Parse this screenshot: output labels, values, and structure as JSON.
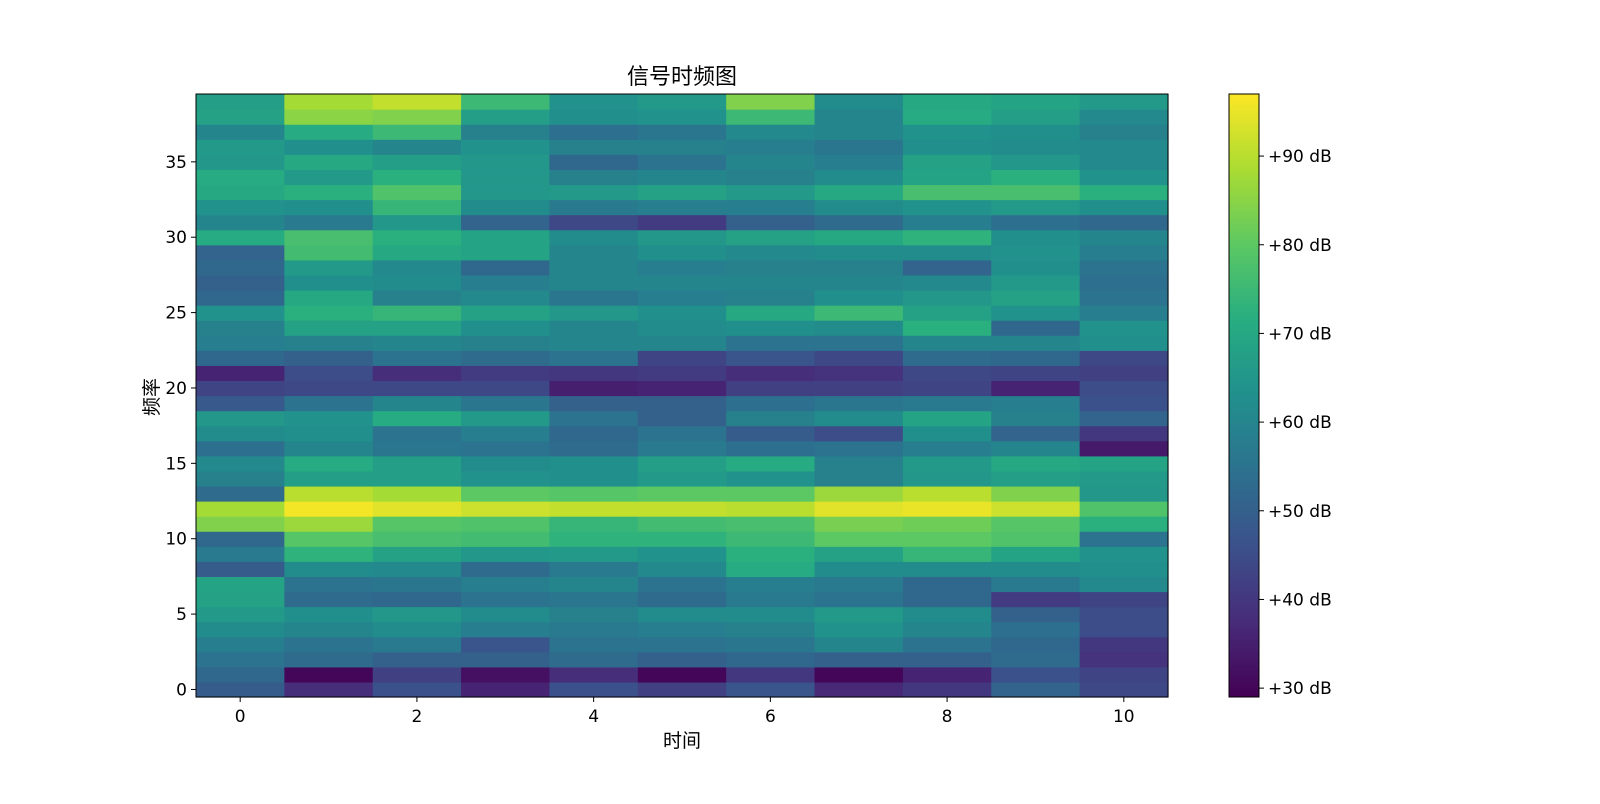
{
  "chart_data": {
    "type": "heatmap",
    "title": "信号时频图",
    "xlabel": "时间",
    "ylabel": "频率",
    "x_ticks": [
      0,
      2,
      4,
      6,
      8,
      10
    ],
    "y_ticks": [
      0,
      5,
      10,
      15,
      20,
      25,
      30,
      35
    ],
    "x_range": [
      -0.5,
      10.5
    ],
    "y_range": [
      -0.5,
      39.5
    ],
    "colormap": "viridis",
    "color_range": [
      29,
      97
    ],
    "colorbar_ticks": [
      {
        "value": 30,
        "label": "+30 dB"
      },
      {
        "value": 40,
        "label": "+40 dB"
      },
      {
        "value": 50,
        "label": "+50 dB"
      },
      {
        "value": 60,
        "label": "+60 dB"
      },
      {
        "value": 70,
        "label": "+70 dB"
      },
      {
        "value": 80,
        "label": "+80 dB"
      },
      {
        "value": 90,
        "label": "+90 dB"
      }
    ],
    "rows_note": "values[f][t]: f = frequency index 0..39 (bottom to top), t = time index 0..10",
    "values": [
      [
        49,
        38,
        46,
        36,
        46,
        42,
        47,
        37,
        40,
        51,
        44
      ],
      [
        52,
        30,
        42,
        32,
        38,
        30,
        40,
        30,
        36,
        46,
        43
      ],
      [
        55,
        53,
        50,
        50,
        53,
        50,
        52,
        50,
        50,
        53,
        39
      ],
      [
        58,
        55,
        57,
        47,
        55,
        55,
        56,
        60,
        55,
        52,
        40
      ],
      [
        62,
        60,
        62,
        58,
        57,
        58,
        59,
        64,
        60,
        54,
        45
      ],
      [
        66,
        63,
        65,
        62,
        59,
        62,
        62,
        66,
        62,
        50,
        45
      ],
      [
        68,
        53,
        52,
        55,
        56,
        53,
        57,
        55,
        52,
        41,
        43
      ],
      [
        69,
        55,
        56,
        58,
        60,
        55,
        58,
        57,
        52,
        57,
        61
      ],
      [
        49,
        62,
        61,
        53,
        57,
        61,
        71,
        62,
        62,
        62,
        63
      ],
      [
        57,
        73,
        68,
        65,
        66,
        64,
        72,
        68,
        74,
        69,
        64
      ],
      [
        52,
        79,
        77,
        76,
        73,
        73,
        75,
        80,
        80,
        78,
        55
      ],
      [
        84,
        87,
        79,
        78,
        74,
        76,
        77,
        83,
        82,
        79,
        72
      ],
      [
        88,
        96,
        94,
        92,
        91,
        91,
        90,
        94,
        95,
        92,
        78
      ],
      [
        53,
        90,
        88,
        80,
        79,
        80,
        80,
        87,
        90,
        84,
        65
      ],
      [
        59,
        67,
        67,
        64,
        63,
        66,
        64,
        59,
        65,
        67,
        66
      ],
      [
        61,
        71,
        67,
        62,
        63,
        67,
        71,
        59,
        66,
        70,
        69
      ],
      [
        54,
        60,
        56,
        55,
        53,
        57,
        54,
        55,
        58,
        60,
        34
      ],
      [
        62,
        63,
        55,
        58,
        52,
        55,
        49,
        45,
        63,
        51,
        40
      ],
      [
        65,
        64,
        71,
        66,
        55,
        50,
        59,
        62,
        69,
        59,
        51
      ],
      [
        48,
        55,
        60,
        56,
        50,
        50,
        54,
        56,
        57,
        58,
        46
      ],
      [
        43,
        44,
        44,
        44,
        35,
        36,
        42,
        42,
        43,
        36,
        45
      ],
      [
        36,
        45,
        38,
        41,
        40,
        41,
        38,
        39,
        44,
        43,
        42
      ],
      [
        52,
        50,
        55,
        53,
        55,
        43,
        47,
        44,
        53,
        52,
        44
      ],
      [
        58,
        59,
        60,
        59,
        60,
        60,
        55,
        55,
        60,
        60,
        63
      ],
      [
        59,
        68,
        68,
        63,
        60,
        62,
        63,
        62,
        72,
        52,
        64
      ],
      [
        64,
        72,
        74,
        68,
        65,
        63,
        70,
        75,
        68,
        64,
        58
      ],
      [
        52,
        70,
        59,
        61,
        56,
        58,
        59,
        63,
        65,
        68,
        55
      ],
      [
        50,
        63,
        62,
        58,
        60,
        60,
        60,
        60,
        61,
        66,
        54
      ],
      [
        52,
        66,
        61,
        52,
        60,
        58,
        59,
        59,
        51,
        63,
        55
      ],
      [
        51,
        76,
        70,
        69,
        60,
        63,
        61,
        62,
        62,
        64,
        58
      ],
      [
        71,
        77,
        72,
        69,
        62,
        65,
        68,
        70,
        73,
        63,
        60
      ],
      [
        60,
        57,
        65,
        51,
        44,
        41,
        50,
        53,
        58,
        54,
        52
      ],
      [
        64,
        63,
        74,
        62,
        57,
        58,
        58,
        62,
        64,
        66,
        63
      ],
      [
        70,
        72,
        78,
        65,
        66,
        68,
        66,
        70,
        77,
        77,
        72
      ],
      [
        71,
        66,
        72,
        65,
        59,
        60,
        59,
        62,
        69,
        72,
        64
      ],
      [
        65,
        70,
        67,
        65,
        52,
        55,
        60,
        58,
        68,
        65,
        61
      ],
      [
        66,
        63,
        60,
        64,
        59,
        59,
        58,
        56,
        63,
        62,
        61
      ],
      [
        60,
        71,
        75,
        59,
        54,
        56,
        61,
        60,
        64,
        63,
        59
      ],
      [
        68,
        85,
        84,
        67,
        63,
        64,
        75,
        60,
        71,
        67,
        61
      ],
      [
        67,
        88,
        91,
        75,
        64,
        66,
        84,
        62,
        70,
        69,
        66
      ]
    ]
  }
}
